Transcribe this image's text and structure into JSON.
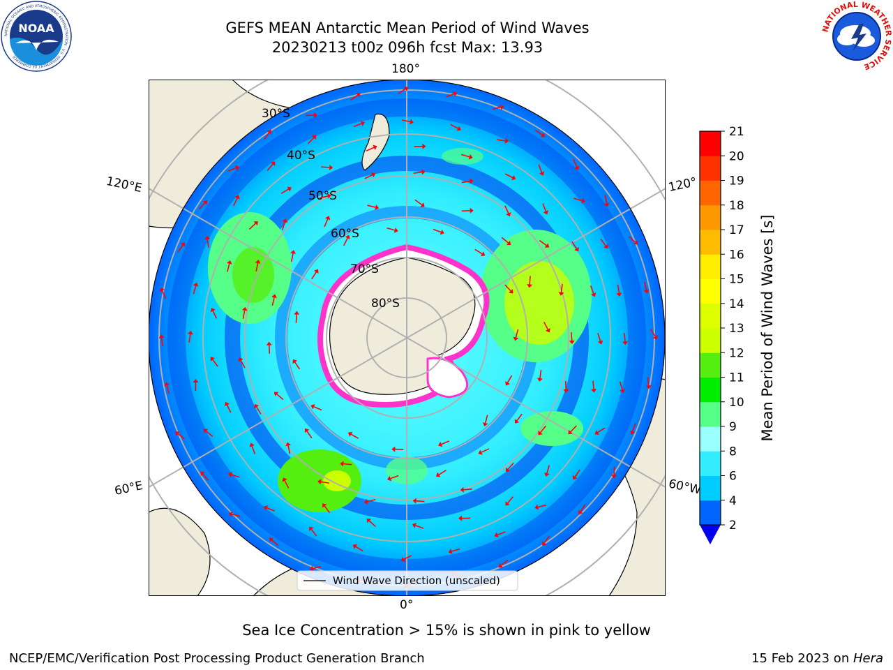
{
  "title": {
    "line1": "GEFS MEAN Antarctic Mean Period of Wind Waves",
    "line2": "20230213 t00z 096h fcst   Max: 13.93"
  },
  "logos": {
    "left": "NOAA",
    "left_ring_text": "NATIONAL OCEANIC AND ATMOSPHERIC ADMINISTRATION · U.S. DEPARTMENT OF COMMERCE",
    "right_ring_text": "NATIONAL WEATHER SERVICE"
  },
  "map": {
    "projection": "south polar stereographic",
    "lon_labels": {
      "top": "180°",
      "bottom": "0°",
      "upper_left": "120°E",
      "upper_right": "120°",
      "lower_left": "60°E",
      "lower_right": "60°W"
    },
    "lat_labels": [
      "30°S",
      "40°S",
      "50°S",
      "60°S",
      "70°S",
      "80°S"
    ],
    "legend": "Wind Wave Direction (unscaled)",
    "colors": {
      "land": "#efecdc",
      "arrows": "#ff0000",
      "sea_ice": "#ff33cc",
      "grid": "#b0b0b0"
    }
  },
  "colorbar": {
    "label": "Mean Period of Wind Waves [s]",
    "ticks": [
      2,
      4,
      6,
      8,
      9,
      10,
      11,
      12,
      13,
      14,
      15,
      16,
      17,
      18,
      19,
      20,
      21
    ],
    "levels": [
      {
        "from": 2,
        "to": 4,
        "color": "#0066ff"
      },
      {
        "from": 4,
        "to": 6,
        "color": "#00ccff"
      },
      {
        "from": 6,
        "to": 8,
        "color": "#33eeff"
      },
      {
        "from": 8,
        "to": 9,
        "color": "#99ffff"
      },
      {
        "from": 9,
        "to": 10,
        "color": "#55ff88"
      },
      {
        "from": 10,
        "to": 11,
        "color": "#00ee00"
      },
      {
        "from": 11,
        "to": 12,
        "color": "#55ee11"
      },
      {
        "from": 12,
        "to": 13,
        "color": "#ccff00"
      },
      {
        "from": 13,
        "to": 14,
        "color": "#ddff00"
      },
      {
        "from": 14,
        "to": 15,
        "color": "#ffff00"
      },
      {
        "from": 15,
        "to": 16,
        "color": "#ffee00"
      },
      {
        "from": 16,
        "to": 17,
        "color": "#ffbb00"
      },
      {
        "from": 17,
        "to": 18,
        "color": "#ff9900"
      },
      {
        "from": 18,
        "to": 19,
        "color": "#ff6600"
      },
      {
        "from": 19,
        "to": 20,
        "color": "#ff3300"
      },
      {
        "from": 20,
        "to": 21,
        "color": "#ff0000"
      }
    ],
    "under_color": "#0000ee"
  },
  "notes": {
    "sea_ice": "Sea Ice Concentration > 15% is shown in pink to yellow",
    "credit": "NCEP/EMC/Verification Post Processing Product Generation Branch",
    "date": "15 Feb 2023 on ",
    "machine": "Hera"
  }
}
